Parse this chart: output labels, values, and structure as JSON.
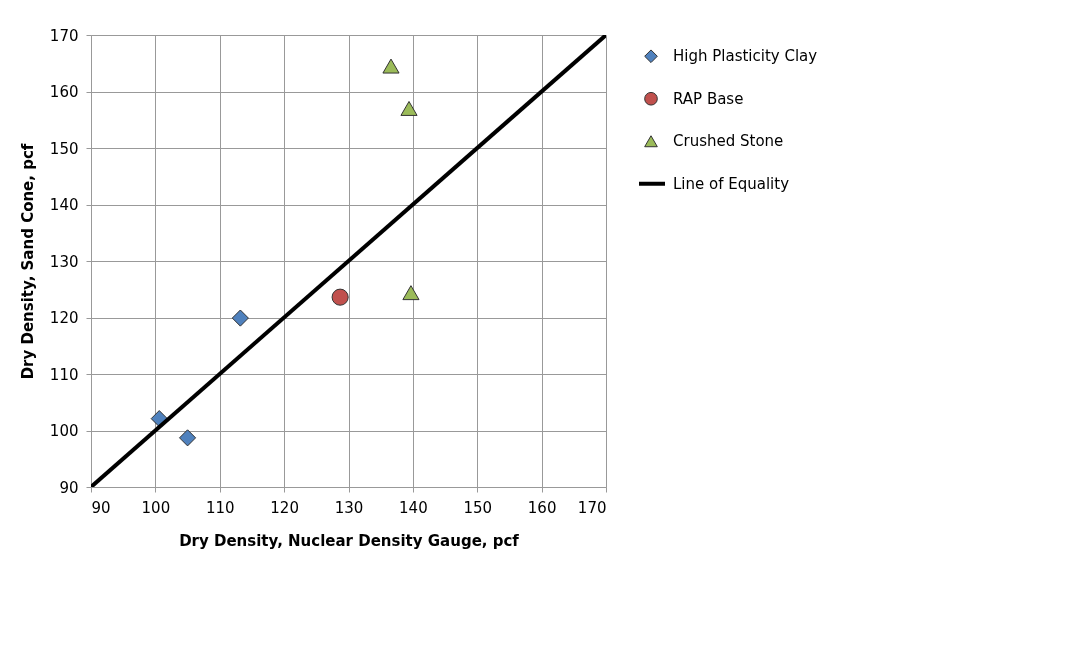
{
  "chart_data": {
    "type": "scatter",
    "xlabel": "Dry Density, Nuclear Density Gauge, pcf",
    "ylabel": "Dry Density, Sand Cone, pcf",
    "xlim": [
      90,
      170
    ],
    "xticks": [
      90,
      100,
      110,
      120,
      130,
      140,
      150,
      160,
      170
    ],
    "ylim": [
      90,
      170
    ],
    "yticks": [
      90,
      100,
      110,
      120,
      130,
      140,
      150,
      160,
      170
    ],
    "grid": true,
    "legend": "right",
    "series": [
      {
        "name": "High Plasticity Clay",
        "color": "#4f81bd",
        "marker": "diamond",
        "x": [
          100.6,
          105.0,
          113.2
        ],
        "values": [
          102.1,
          98.7,
          119.9
        ]
      },
      {
        "name": "RAP Base",
        "color": "#c0504d",
        "marker": "circle",
        "x": [
          128.7
        ],
        "values": [
          123.6
        ]
      },
      {
        "name": "Crushed Stone",
        "color": "#9bbb59",
        "marker": "triangle",
        "x": [
          136.6,
          139.4,
          139.7
        ],
        "values": [
          164.5,
          157.0,
          124.4
        ]
      },
      {
        "name": "Line of Equality",
        "type": "line",
        "color": "#000000",
        "marker": "none",
        "line_style": "solid",
        "x": [
          90,
          170
        ],
        "values": [
          90,
          170
        ]
      }
    ]
  }
}
